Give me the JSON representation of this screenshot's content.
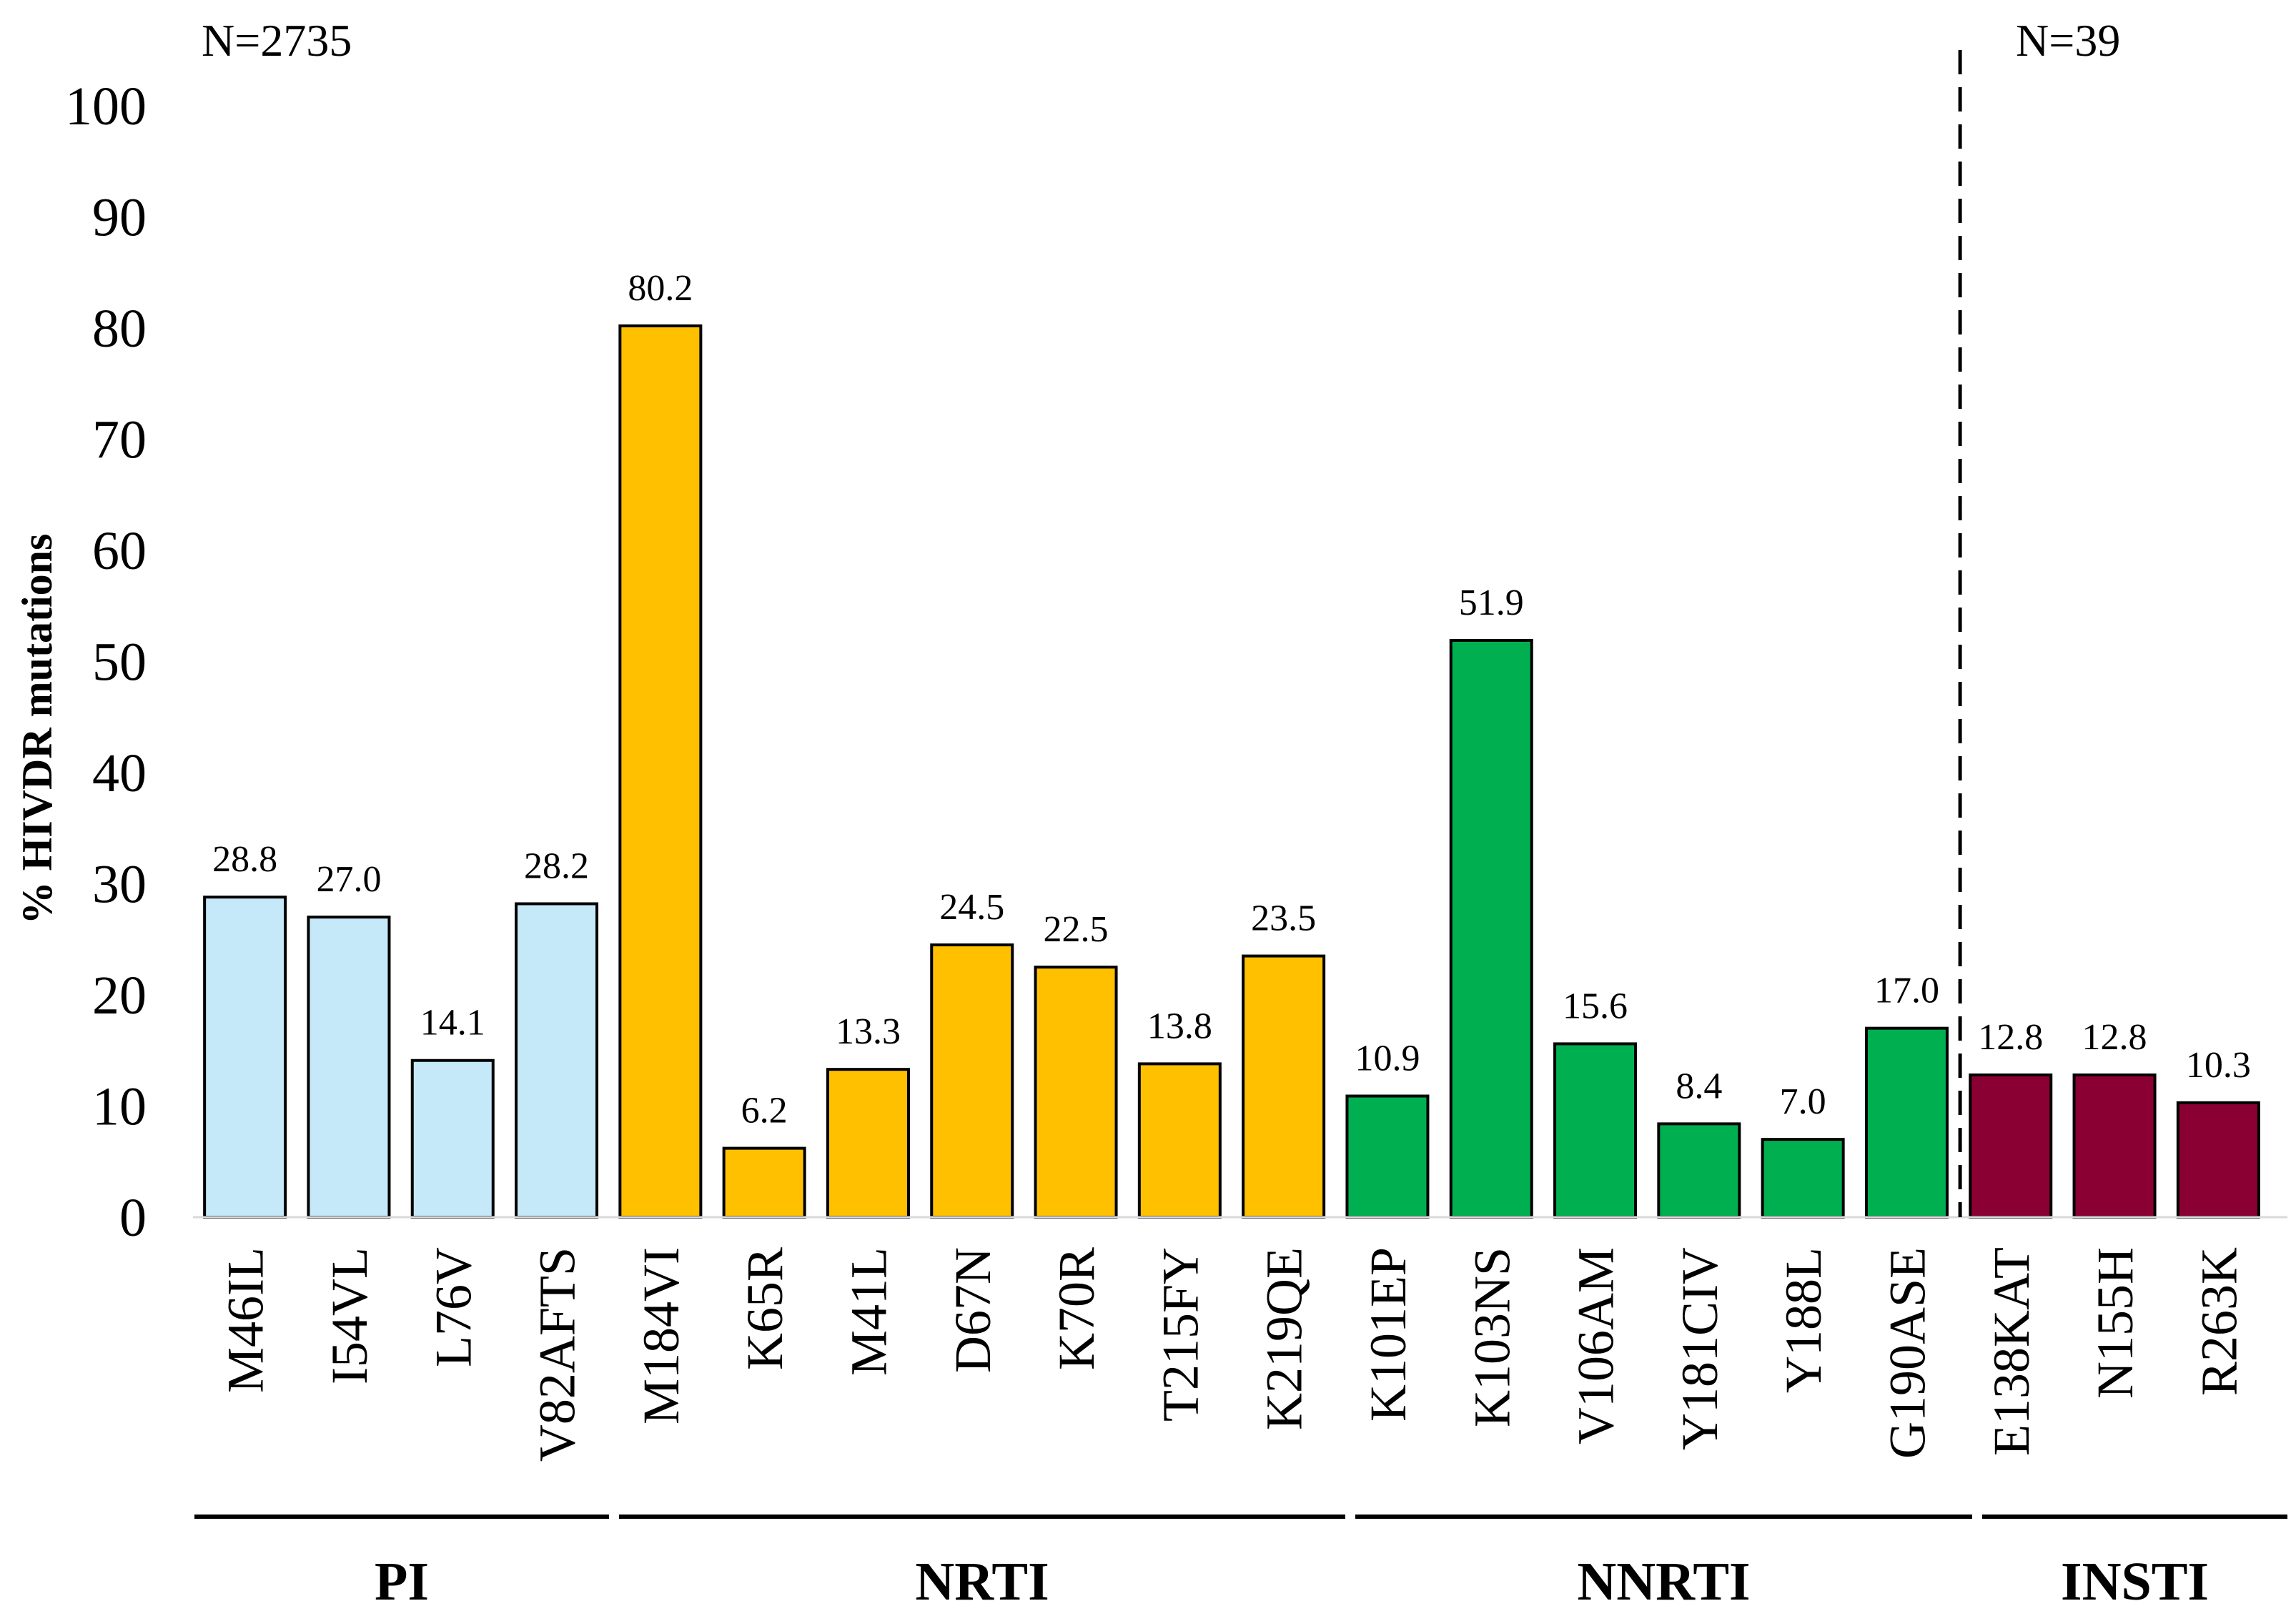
{
  "chart_data": {
    "type": "bar",
    "ylabel": "% HIVDR mutations",
    "xlabel": "",
    "ylim": [
      0,
      100
    ],
    "yticks": [
      0,
      10,
      20,
      30,
      40,
      50,
      60,
      70,
      80,
      90,
      100
    ],
    "annotations": {
      "left_n": "N=2735",
      "right_n": "N=39"
    },
    "colors": {
      "PI": "#c5e9f9",
      "NRTI": "#ffc000",
      "NNRTI": "#00b050",
      "INSTI": "#8b0032"
    },
    "groups": [
      {
        "name": "PI",
        "categories": [
          "M46IL",
          "I54VL",
          "L76V",
          "V82AFTS"
        ],
        "values": [
          28.8,
          27.0,
          14.1,
          28.2
        ],
        "labels": [
          "28.8",
          "27.0",
          "14.1",
          "28.2"
        ]
      },
      {
        "name": "NRTI",
        "categories": [
          "M184VI",
          "K65R",
          "M41L",
          "D67N",
          "K70R",
          "T215FY",
          "K219QE"
        ],
        "values": [
          80.2,
          6.2,
          13.3,
          24.5,
          22.5,
          13.8,
          23.5
        ],
        "labels": [
          "80.2",
          "6.2",
          "13.3",
          "24.5",
          "22.5",
          "13.8",
          "23.5"
        ]
      },
      {
        "name": "NNRTI",
        "categories": [
          "K101EP",
          "K103NS",
          "V106AM",
          "Y181CIV",
          "Y188L",
          "G190ASE"
        ],
        "values": [
          10.9,
          51.9,
          15.6,
          8.4,
          7.0,
          17.0
        ],
        "labels": [
          "10.9",
          "51.9",
          "15.6",
          "8.4",
          "7.0",
          "17.0"
        ]
      },
      {
        "name": "INSTI",
        "categories": [
          "E138KAT",
          "N155H",
          "R263K"
        ],
        "values": [
          12.8,
          12.8,
          10.3
        ],
        "labels": [
          "12.8",
          "12.8",
          "10.3"
        ]
      }
    ]
  }
}
